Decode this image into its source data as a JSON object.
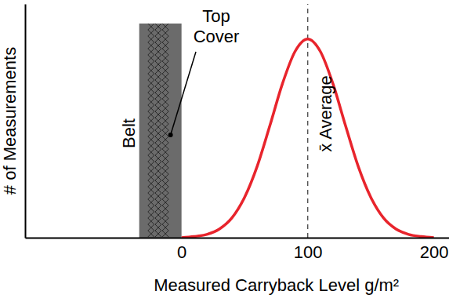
{
  "chart_data": {
    "type": "line",
    "x_label": "Measured Carryback Level g/m²",
    "y_label": "# of Measurements",
    "x": [
      0,
      10,
      20,
      30,
      40,
      50,
      60,
      70,
      80,
      90,
      100,
      110,
      120,
      130,
      140,
      150,
      160,
      170,
      180,
      190,
      200
    ],
    "values": [
      0,
      0.5,
      1.4,
      3.7,
      8.5,
      17.3,
      30.6,
      47.9,
      65.9,
      79.7,
      85,
      79.7,
      65.9,
      47.9,
      30.6,
      17.3,
      8.5,
      3.7,
      1.4,
      0.5,
      0
    ],
    "color": "#e8242c",
    "xlim": [
      -124,
      212
    ],
    "xticks": [
      0,
      100,
      200
    ],
    "ylim": [
      0,
      100
    ],
    "yticks": [],
    "tick_labels": "x",
    "annotations": [
      {
        "text": "x̄ Average",
        "x": 100
      },
      {
        "text": "Belt"
      },
      {
        "text": "Top Cover"
      }
    ]
  }
}
